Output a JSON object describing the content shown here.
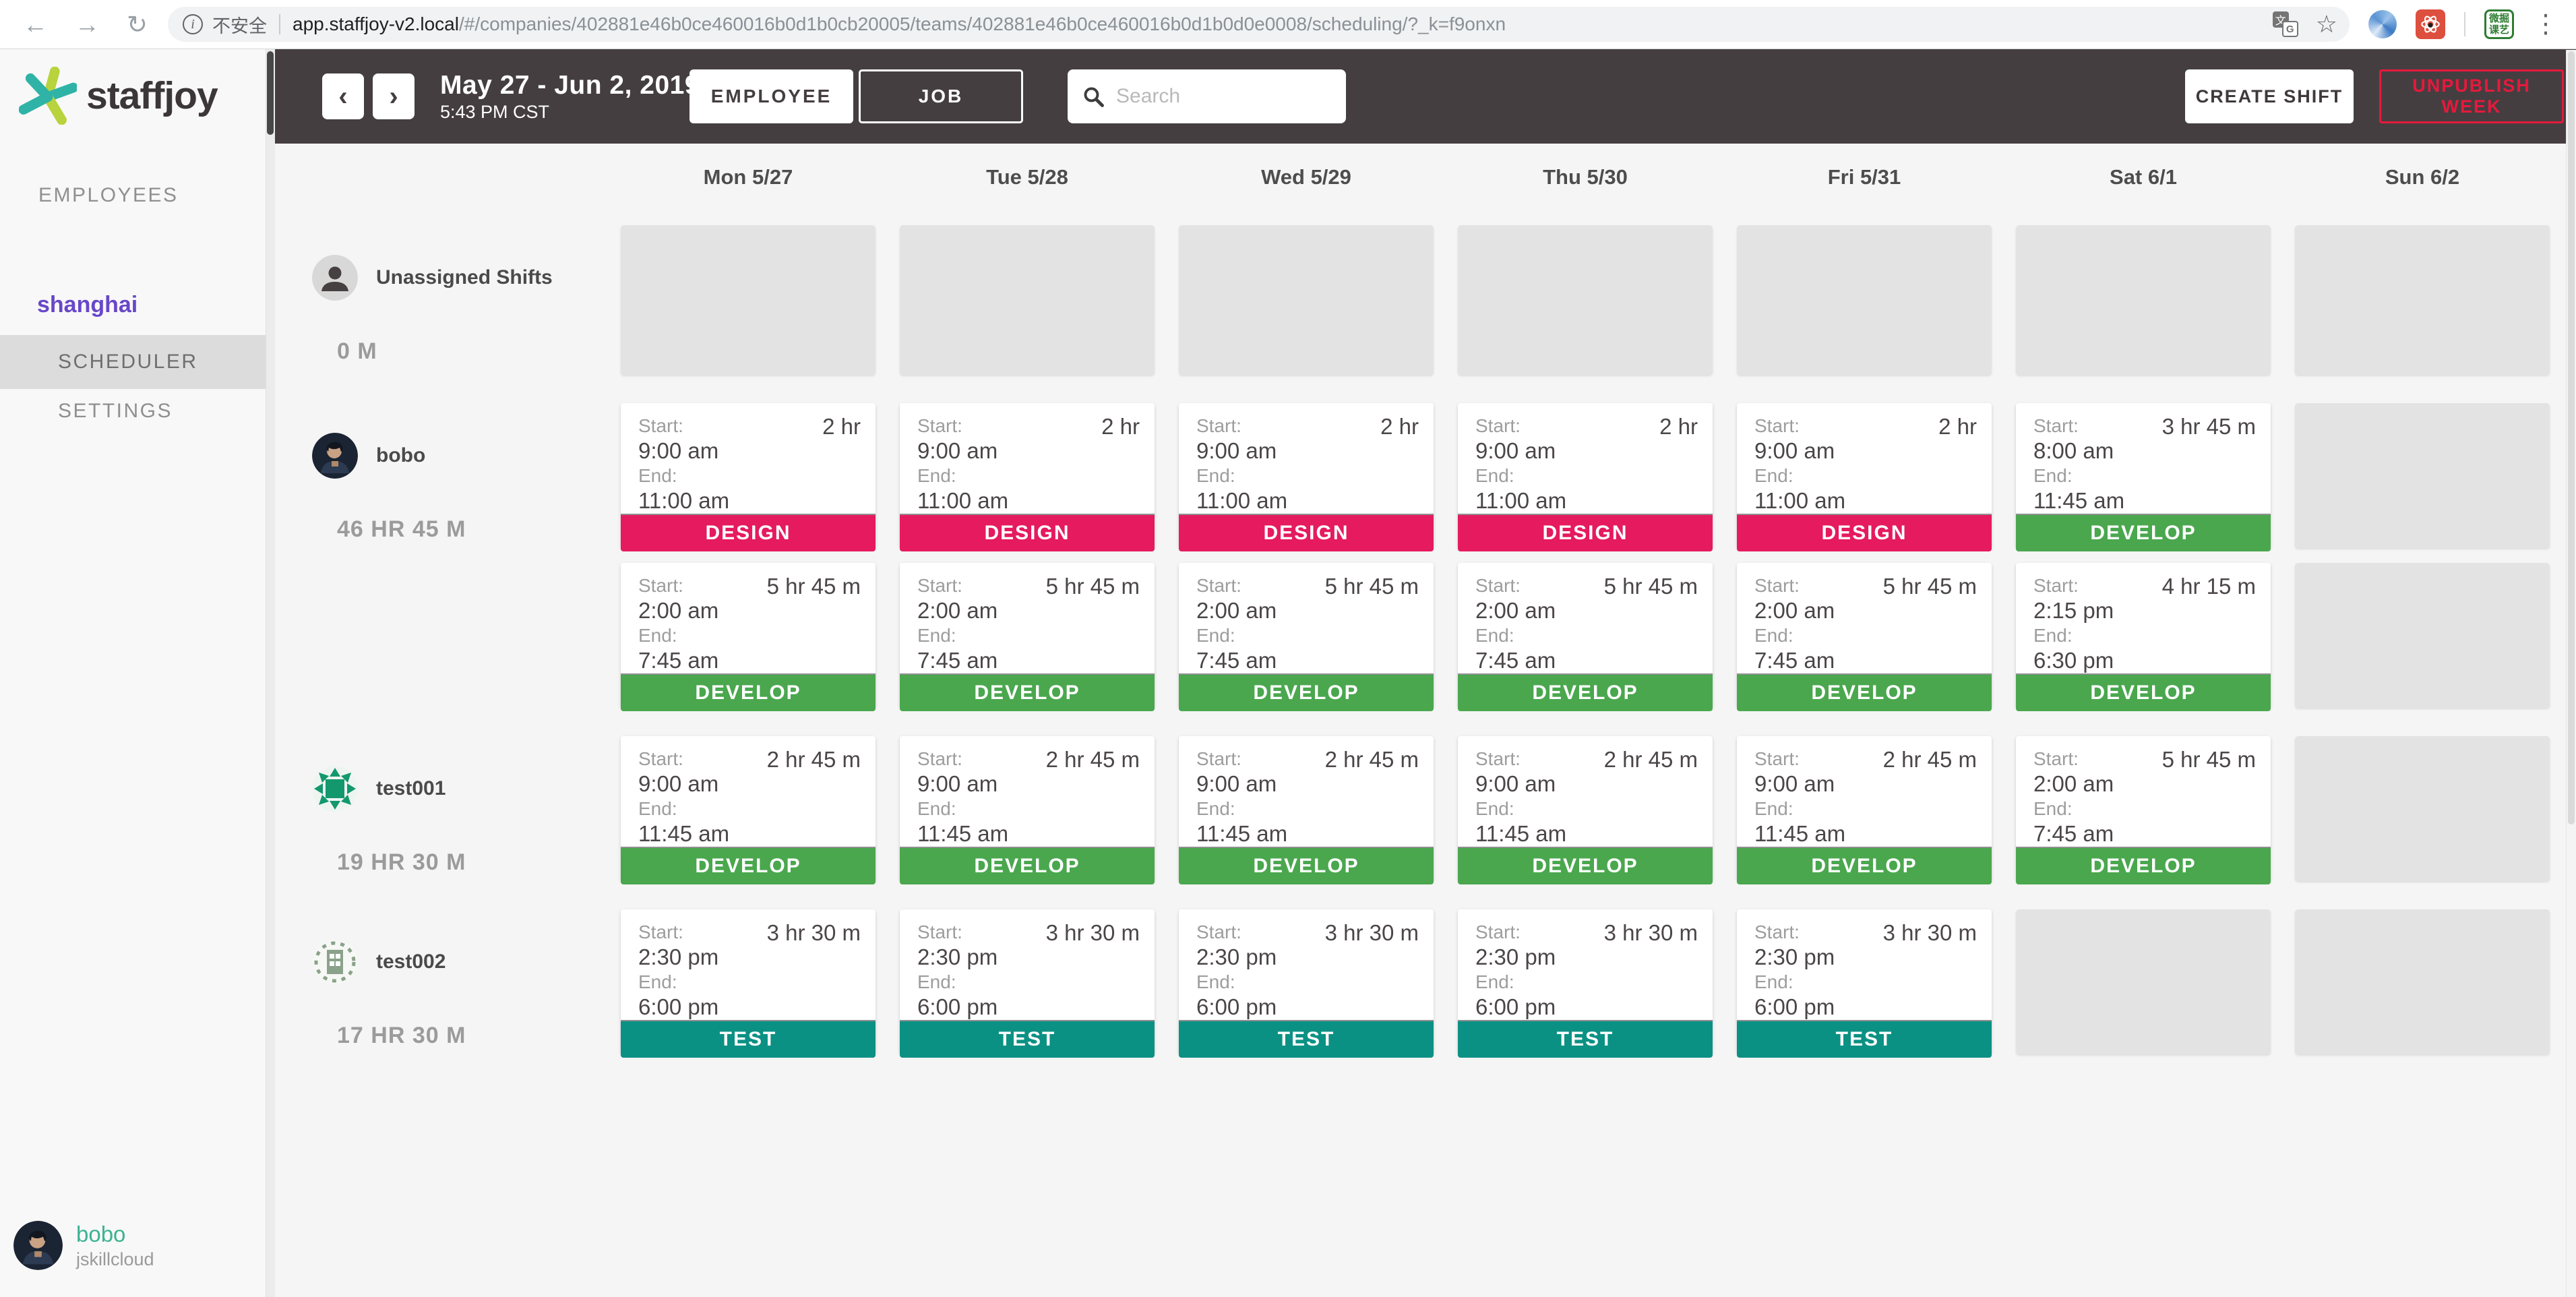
{
  "browser": {
    "security_label": "不安全",
    "url_host": "app.staffjoy-v2.local",
    "url_path": "/#/companies/402881e46b0ce460016b0d1b0cb20005/teams/402881e46b0ce460016b0d1b0d0e0008/scheduling/?_k=f9onxn",
    "extension_badge_text": "微掘课艺"
  },
  "topbar": {
    "date_range": "May 27 - Jun 2, 2019",
    "time": "5:43 PM CST",
    "view_toggle": {
      "employee": "EMPLOYEE",
      "job": "JOB",
      "active": "EMPLOYEE"
    },
    "search_placeholder": "Search",
    "create_shift": "CREATE SHIFT",
    "unpublish_week": "UNPUBLISH WEEK"
  },
  "sidebar": {
    "brand": "staffjoy",
    "employees_label": "EMPLOYEES",
    "team_name": "shanghai",
    "items": [
      {
        "label": "SCHEDULER",
        "active": true
      },
      {
        "label": "SETTINGS",
        "active": false
      }
    ],
    "user": {
      "name": "bobo",
      "company": "jskillcloud"
    }
  },
  "calendar": {
    "days": [
      "Mon 5/27",
      "Tue 5/28",
      "Wed 5/29",
      "Thu 5/30",
      "Fri 5/31",
      "Sat 6/1",
      "Sun 6/2"
    ],
    "start_label": "Start:",
    "end_label": "End:",
    "jobs": {
      "DESIGN": "#e51a5f",
      "DEVELOP": "#4aa74e",
      "TEST": "#0b9184"
    },
    "rows": [
      {
        "name": "Unassigned Shifts",
        "hours": "0 M",
        "avatar": "unassigned",
        "tall": true,
        "lanes": [
          [
            null,
            null,
            null,
            null,
            null,
            null,
            null
          ]
        ]
      },
      {
        "name": "bobo",
        "hours": "46 HR 45 M",
        "avatar": "bobo",
        "lanes": [
          [
            {
              "start": "9:00 am",
              "end": "11:00 am",
              "duration": "2 hr",
              "job": "DESIGN"
            },
            {
              "start": "9:00 am",
              "end": "11:00 am",
              "duration": "2 hr",
              "job": "DESIGN"
            },
            {
              "start": "9:00 am",
              "end": "11:00 am",
              "duration": "2 hr",
              "job": "DESIGN"
            },
            {
              "start": "9:00 am",
              "end": "11:00 am",
              "duration": "2 hr",
              "job": "DESIGN"
            },
            {
              "start": "9:00 am",
              "end": "11:00 am",
              "duration": "2 hr",
              "job": "DESIGN"
            },
            {
              "start": "8:00 am",
              "end": "11:45 am",
              "duration": "3 hr 45 m",
              "job": "DEVELOP"
            },
            null
          ],
          [
            {
              "start": "2:00 am",
              "end": "7:45 am",
              "duration": "5 hr 45 m",
              "job": "DEVELOP"
            },
            {
              "start": "2:00 am",
              "end": "7:45 am",
              "duration": "5 hr 45 m",
              "job": "DEVELOP"
            },
            {
              "start": "2:00 am",
              "end": "7:45 am",
              "duration": "5 hr 45 m",
              "job": "DEVELOP"
            },
            {
              "start": "2:00 am",
              "end": "7:45 am",
              "duration": "5 hr 45 m",
              "job": "DEVELOP"
            },
            {
              "start": "2:00 am",
              "end": "7:45 am",
              "duration": "5 hr 45 m",
              "job": "DEVELOP"
            },
            {
              "start": "2:15 pm",
              "end": "6:30 pm",
              "duration": "4 hr 15 m",
              "job": "DEVELOP"
            },
            null
          ]
        ]
      },
      {
        "name": "test001",
        "hours": "19 HR 30 M",
        "avatar": "test001",
        "lanes": [
          [
            {
              "start": "9:00 am",
              "end": "11:45 am",
              "duration": "2 hr 45 m",
              "job": "DEVELOP"
            },
            {
              "start": "9:00 am",
              "end": "11:45 am",
              "duration": "2 hr 45 m",
              "job": "DEVELOP"
            },
            {
              "start": "9:00 am",
              "end": "11:45 am",
              "duration": "2 hr 45 m",
              "job": "DEVELOP"
            },
            {
              "start": "9:00 am",
              "end": "11:45 am",
              "duration": "2 hr 45 m",
              "job": "DEVELOP"
            },
            {
              "start": "9:00 am",
              "end": "11:45 am",
              "duration": "2 hr 45 m",
              "job": "DEVELOP"
            },
            {
              "start": "2:00 am",
              "end": "7:45 am",
              "duration": "5 hr 45 m",
              "job": "DEVELOP"
            },
            null
          ]
        ]
      },
      {
        "name": "test002",
        "hours": "17 HR 30 M",
        "avatar": "test002",
        "lanes": [
          [
            {
              "start": "2:30 pm",
              "end": "6:00 pm",
              "duration": "3 hr 30 m",
              "job": "TEST"
            },
            {
              "start": "2:30 pm",
              "end": "6:00 pm",
              "duration": "3 hr 30 m",
              "job": "TEST"
            },
            {
              "start": "2:30 pm",
              "end": "6:00 pm",
              "duration": "3 hr 30 m",
              "job": "TEST"
            },
            {
              "start": "2:30 pm",
              "end": "6:00 pm",
              "duration": "3 hr 30 m",
              "job": "TEST"
            },
            {
              "start": "2:30 pm",
              "end": "6:00 pm",
              "duration": "3 hr 30 m",
              "job": "TEST"
            },
            null,
            null
          ]
        ]
      }
    ]
  },
  "colors": {
    "header_bg": "#453e41",
    "job_design": "#e51a5f",
    "job_develop": "#4aa74e",
    "job_test": "#0b9184",
    "accent_purple": "#6847c8",
    "danger_red": "#e6193c",
    "user_name_teal": "#3bb290",
    "logo_teal": "#2fb3a7",
    "logo_lime": "#b8d33d"
  }
}
